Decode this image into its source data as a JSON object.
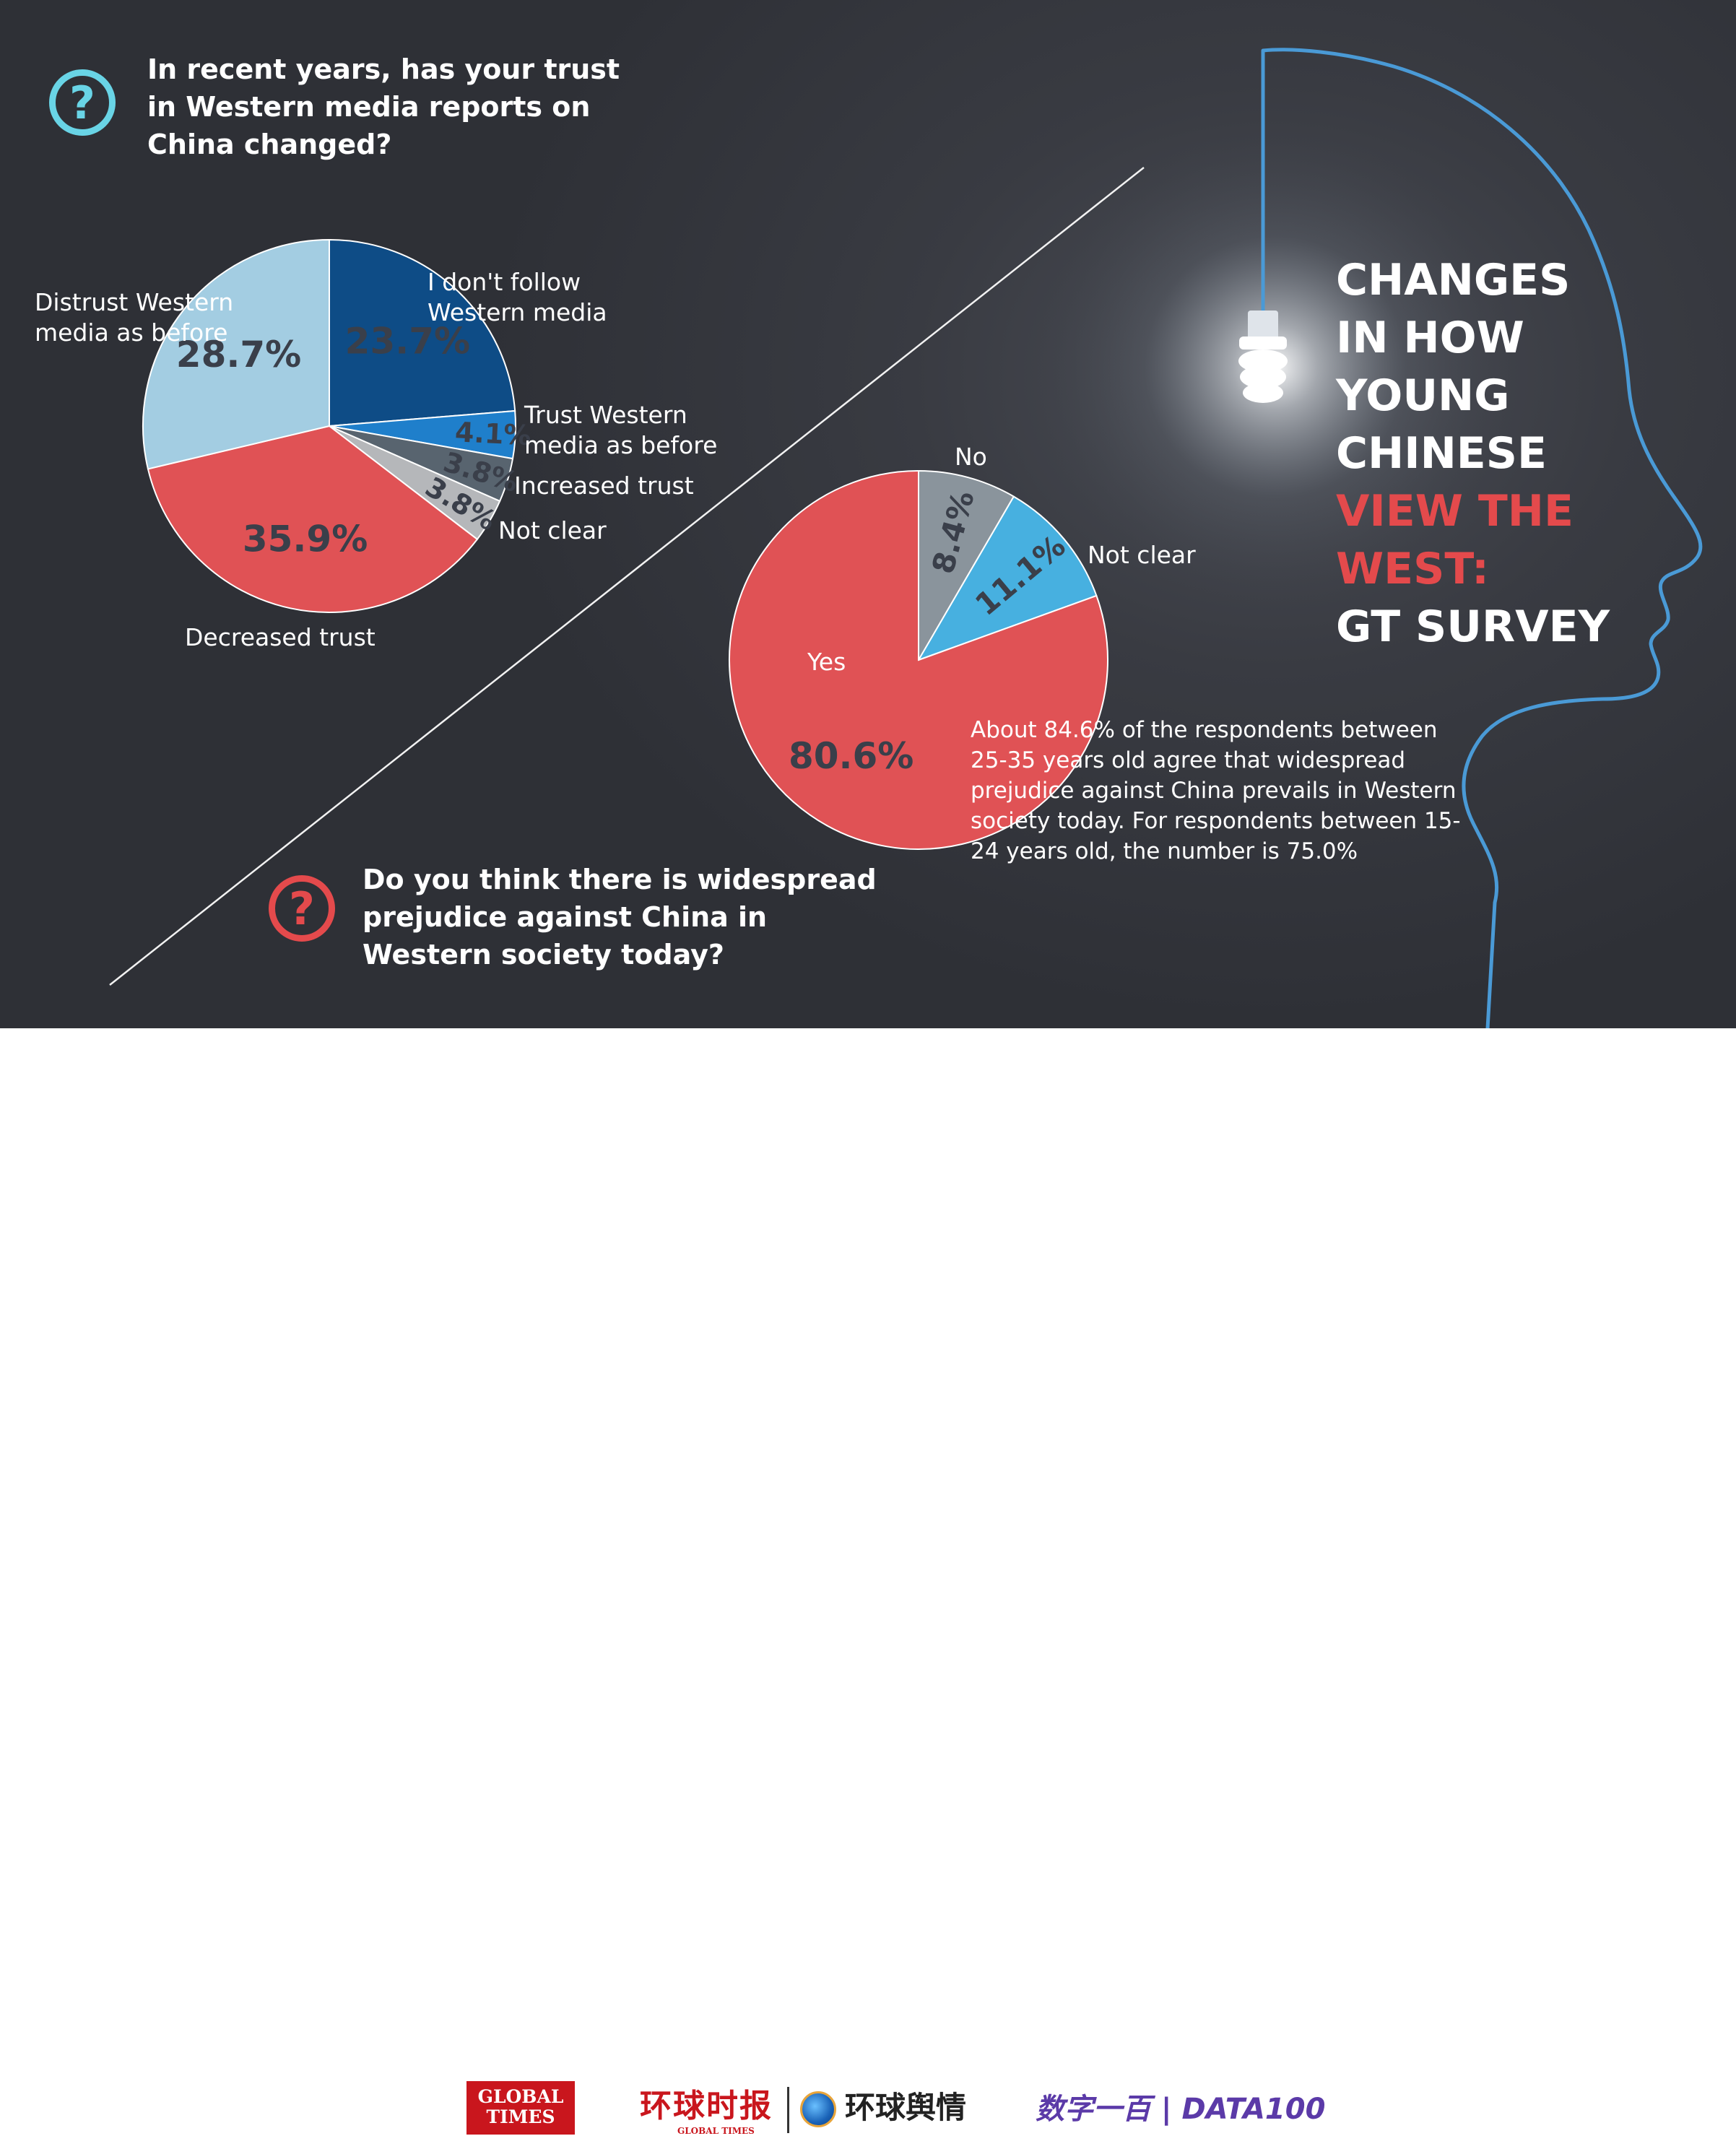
{
  "headline": {
    "lines": [
      {
        "text": "CHANGES",
        "accent": false
      },
      {
        "text": "IN HOW",
        "accent": false
      },
      {
        "text": "YOUNG",
        "accent": false
      },
      {
        "text": "CHINESE",
        "accent": false
      },
      {
        "text": "VIEW THE",
        "accent": true
      },
      {
        "text": "WEST:",
        "accent": true
      },
      {
        "text": "GT SURVEY",
        "accent": false
      }
    ]
  },
  "question1": {
    "icon": "question-circle-icon",
    "text": "In recent years, has your trust\nin Western media reports on\nChina changed?"
  },
  "question2": {
    "icon": "question-circle-icon",
    "text": "Do you think there is widespread\nprejudice against China in\nWestern society today?"
  },
  "chart1_labels": {
    "dont_follow": "I don't follow\nWestern media",
    "trust_before": "Trust Western\nmedia as before",
    "increased": "Increased trust",
    "not_clear": "Not clear",
    "decreased": "Decreased trust",
    "distrust_before": "Distrust Western\nmedia as before"
  },
  "chart2_labels": {
    "no": "No",
    "not_clear": "Not clear",
    "yes": "Yes"
  },
  "note": "About 84.6% of the respondents between 25-35 years old agree that widespread prejudice against China prevails in Western society today. For respondents between 15-24 years old, the number is 75.0%",
  "chart_data": [
    {
      "type": "pie",
      "slices": [
        {
          "label": "I don't follow Western media",
          "value": 23.7,
          "value_label": "23.7%",
          "color": "#0e4c86",
          "text_color": "#3a3f4a"
        },
        {
          "label": "Trust Western media as before",
          "value": 4.1,
          "value_label": "4.1%",
          "color": "#1f7fcb",
          "text_color": "#3a3f4a"
        },
        {
          "label": "Increased trust",
          "value": 3.8,
          "value_label": "3.8%",
          "color": "#58646f",
          "text_color": "#3a3f4a"
        },
        {
          "label": "Not clear",
          "value": 3.8,
          "value_label": "3.8%",
          "color": "#b5b7ba",
          "text_color": "#3a3f4a"
        },
        {
          "label": "Decreased trust",
          "value": 35.9,
          "value_label": "35.9%",
          "color": "#e05255",
          "text_color": "#3a3f4a"
        },
        {
          "label": "Distrust Western media as before",
          "value": 28.7,
          "value_label": "28.7%",
          "color": "#a3cde2",
          "text_color": "#3a3f4a"
        }
      ]
    },
    {
      "type": "pie",
      "slices": [
        {
          "label": "No",
          "value": 8.4,
          "value_label": "8.4%",
          "color": "#8a949c",
          "text_color": "#3a3f4a"
        },
        {
          "label": "Not clear",
          "value": 11.1,
          "value_label": "11.1%",
          "color": "#47b0e0",
          "text_color": "#3a3f4a"
        },
        {
          "label": "Yes",
          "value": 80.6,
          "value_label": "80.6%",
          "color": "#e05255",
          "text_color": "#3a3f4a"
        }
      ]
    }
  ],
  "footer": {
    "global_times_logo": [
      "GLOBAL",
      "TIMES"
    ],
    "huanqiu_logo": "环球时报",
    "huanqiu_sub": "GLOBAL TIMES",
    "yuqing_logo": "环球舆情",
    "data100_logo": "数字一百 | DATA100"
  }
}
